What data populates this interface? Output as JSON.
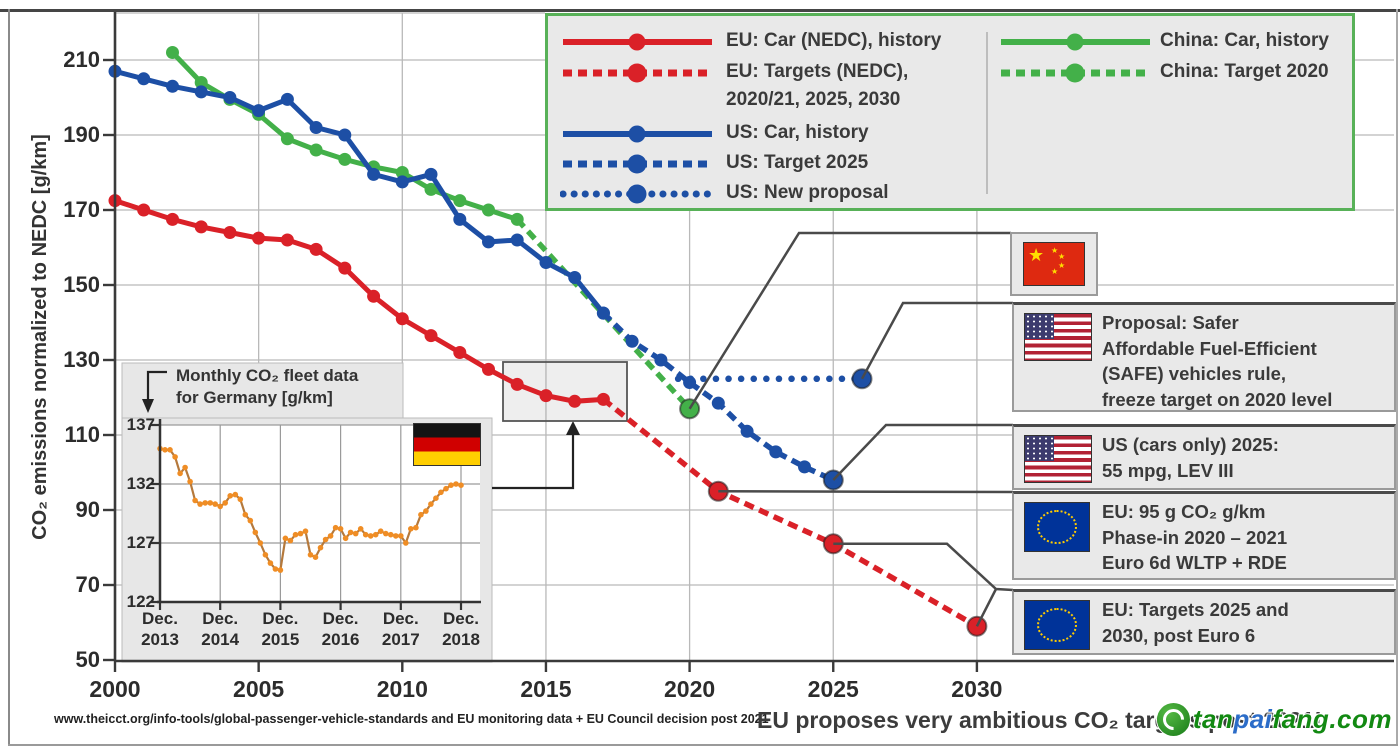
{
  "colors": {
    "red": "#da2128",
    "blue": "#1d4fa5",
    "green": "#43b049",
    "orange": "#ef8d25",
    "orange_line": "#b5793c",
    "grid": "#b9b9b9",
    "axis": "#3a3a3a",
    "connector": "#4a4a4a",
    "legend_border": "#58b158",
    "panel_bg": "#e9e9e9"
  },
  "legend": {
    "left": [
      {
        "label": "EU: Car (NEDC), history",
        "label2": "",
        "style": "red-solid"
      },
      {
        "label": "EU: Targets (NEDC),",
        "label2": "2020/21, 2025, 2030",
        "style": "red-dashed"
      },
      {
        "label": "US: Car, history",
        "label2": "",
        "style": "blue-solid"
      },
      {
        "label": "US: Target 2025",
        "label2": "",
        "style": "blue-dashed"
      },
      {
        "label": "US: New proposal",
        "label2": "",
        "style": "blue-dotted"
      }
    ],
    "right": [
      {
        "label": "China: Car, history",
        "label2": "",
        "style": "green-solid"
      },
      {
        "label": "China: Target 2020",
        "label2": "",
        "style": "green-dashed"
      }
    ]
  },
  "annotations": [
    {
      "id": "china-target-flag",
      "flag": "cn",
      "lines": []
    },
    {
      "id": "safe-proposal",
      "flag": "us",
      "lines": [
        "Proposal: Safer",
        "Affordable Fuel-Efficient",
        "(SAFE) vehicles rule,",
        "freeze target on 2020 level"
      ]
    },
    {
      "id": "us-2025",
      "flag": "us",
      "lines": [
        "US (cars only) 2025:",
        "55 mpg, LEV III"
      ]
    },
    {
      "id": "eu-95g",
      "flag": "eu",
      "lines": [
        "EU: 95 g CO₂ g/km",
        "Phase-in 2020 – 2021",
        "Euro 6d WLTP + RDE"
      ]
    },
    {
      "id": "eu-targets",
      "flag": "eu",
      "lines": [
        "EU: Targets 2025 and",
        "2030, post Euro 6"
      ]
    }
  ],
  "footer": {
    "source": "www.theicct.org/info-tools/global-passenger-vehicle-standards and EU monitoring data + EU Council decision post 2021",
    "headline": "EU proposes very ambitious CO₂ targets post 2021!"
  },
  "watermark": {
    "parts": [
      {
        "text": "tan",
        "color": "#128912"
      },
      {
        "text": "pai",
        "color": "#2b6cc8"
      },
      {
        "text": "fang",
        "color": "#128912"
      },
      {
        "text": ".com",
        "color": "#128912"
      }
    ]
  },
  "chart_data": [
    {
      "type": "line",
      "ylabel": "CO₂ emissions normalized to NEDC [g/km]",
      "x_ticks": [
        2000,
        2005,
        2010,
        2015,
        2020,
        2025,
        2030
      ],
      "y_ticks": [
        210,
        190,
        170,
        150,
        130,
        110,
        90,
        70,
        50
      ],
      "xlim": [
        2000,
        2030
      ],
      "ylim": [
        50,
        215
      ],
      "grid": true,
      "series": [
        {
          "id": "china-history",
          "label": "China: Car, history",
          "color": "green",
          "style": "solid",
          "point_markers": true,
          "years": [
            2002,
            2003,
            2004,
            2005,
            2006,
            2007,
            2008,
            2009,
            2010,
            2011,
            2012,
            2013,
            2014
          ],
          "values": [
            212,
            204,
            199.5,
            195.5,
            189,
            186,
            183.5,
            181.5,
            180,
            175.5,
            172.5,
            170,
            167.5
          ]
        },
        {
          "id": "china-target-2020",
          "label": "China: Target 2020",
          "color": "green",
          "style": "dashed",
          "point_markers": false,
          "years": [
            2014,
            2020
          ],
          "values": [
            167.5,
            117
          ],
          "big_markers": [
            [
              2020,
              117
            ]
          ]
        },
        {
          "id": "us-history",
          "label": "US: Car, history",
          "color": "blue",
          "style": "solid",
          "point_markers": true,
          "years": [
            2000,
            2001,
            2002,
            2003,
            2004,
            2005,
            2006,
            2007,
            2008,
            2009,
            2010,
            2011,
            2012,
            2013,
            2014,
            2015,
            2016,
            2017
          ],
          "values": [
            207,
            205,
            203,
            201.5,
            200,
            196.5,
            199.5,
            192,
            190,
            179.5,
            177.5,
            179.5,
            167.5,
            161.5,
            162,
            156,
            152,
            142.5
          ]
        },
        {
          "id": "us-target-2025",
          "label": "US: Target 2025",
          "color": "blue",
          "style": "dashed",
          "point_markers": true,
          "years": [
            2017,
            2018,
            2019,
            2020,
            2021,
            2022,
            2023,
            2024,
            2025
          ],
          "values": [
            142.5,
            135,
            130,
            124,
            118.5,
            111,
            105.5,
            101.5,
            98
          ],
          "big_markers": [
            [
              2025,
              98
            ]
          ]
        },
        {
          "id": "us-new-proposal",
          "label": "US: New proposal",
          "color": "blue",
          "style": "dotted",
          "point_markers": false,
          "years": [
            2019.6,
            2026
          ],
          "values": [
            125,
            125
          ],
          "big_markers": [
            [
              2026,
              125
            ]
          ]
        },
        {
          "id": "eu-history",
          "label": "EU: Car (NEDC), history",
          "color": "red",
          "style": "solid",
          "point_markers": true,
          "years": [
            2000,
            2001,
            2002,
            2003,
            2004,
            2005,
            2006,
            2007,
            2008,
            2009,
            2010,
            2011,
            2012,
            2013,
            2014,
            2015,
            2016,
            2017
          ],
          "values": [
            172.5,
            170,
            167.5,
            165.5,
            164,
            162.5,
            162,
            159.5,
            154.5,
            147,
            141,
            136.5,
            132,
            127.5,
            123.5,
            120.5,
            119,
            119.5
          ]
        },
        {
          "id": "eu-targets",
          "label": "EU: Targets (NEDC), 2020/21, 2025, 2030",
          "color": "red",
          "style": "dashed",
          "point_markers": false,
          "years": [
            2017,
            2021,
            2025,
            2030
          ],
          "values": [
            119.5,
            95,
            81,
            59
          ],
          "big_markers": [
            [
              2021,
              95
            ],
            [
              2025,
              81
            ],
            [
              2030,
              59
            ]
          ]
        }
      ]
    },
    {
      "type": "line",
      "title_lines": [
        "Monthly CO₂ fleet data",
        "for Germany [g/km]"
      ],
      "y_ticks": [
        137,
        132,
        127,
        122
      ],
      "x_tick_labels": [
        "Dec.\n2013",
        "Dec.\n2014",
        "Dec.\n2015",
        "Dec.\n2016",
        "Dec.\n2017",
        "Dec.\n2018"
      ],
      "ylim": [
        122,
        137
      ],
      "grid": true,
      "series": [
        {
          "id": "germany-monthly",
          "label": "Monthly CO2 fleet data for Germany",
          "color": "orange",
          "values": [
            135.0,
            134.9,
            134.9,
            134.3,
            132.9,
            133.4,
            132.2,
            130.6,
            130.3,
            130.4,
            130.4,
            130.3,
            130.1,
            130.4,
            131.0,
            131.1,
            130.7,
            129.4,
            128.9,
            127.9,
            127.0,
            126.0,
            125.3,
            124.8,
            124.7,
            127.4,
            127.2,
            127.7,
            127.8,
            128.0,
            126.0,
            125.8,
            126.6,
            127.3,
            127.6,
            128.3,
            128.2,
            127.4,
            127.9,
            127.8,
            128.2,
            127.7,
            127.6,
            127.7,
            128.0,
            127.8,
            127.7,
            127.6,
            127.6,
            127.0,
            128.2,
            128.3,
            129.4,
            129.7,
            130.3,
            130.8,
            131.3,
            131.6,
            131.9,
            132.0,
            131.9
          ]
        }
      ]
    }
  ]
}
